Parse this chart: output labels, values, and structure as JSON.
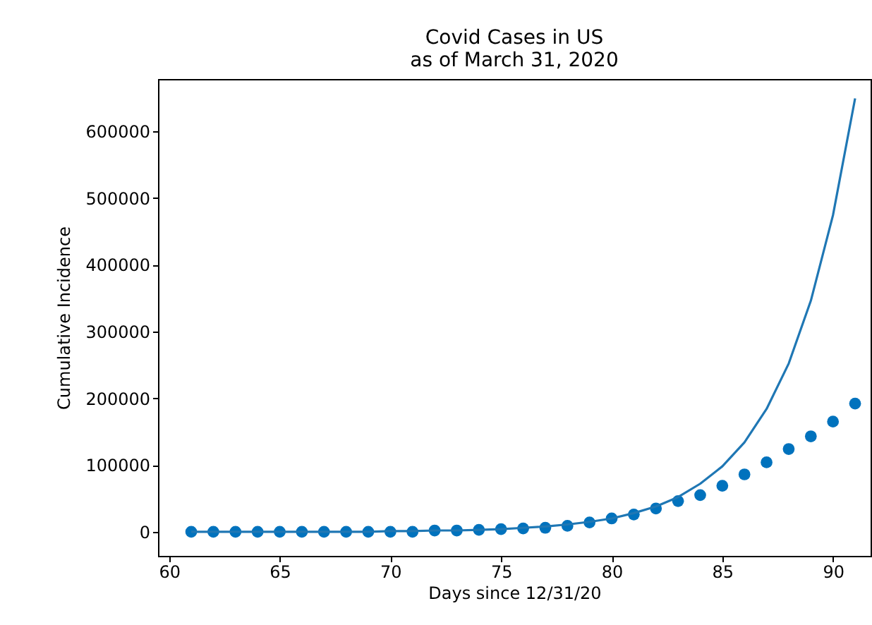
{
  "chart_data": {
    "type": "scatter",
    "title": "Covid Cases in US\nas of March 31, 2020",
    "xlabel": "Days since 12/31/20",
    "ylabel": "Cumulative Incidence",
    "x": [
      61,
      62,
      63,
      64,
      65,
      66,
      67,
      68,
      69,
      70,
      71,
      72,
      73,
      74,
      75,
      76,
      77,
      78,
      79,
      80,
      81,
      82,
      83,
      84,
      85,
      86,
      87,
      88,
      89,
      90,
      91
    ],
    "series": [
      {
        "color": "#0072bd",
        "marker": "circle",
        "values": [
          0,
          0,
          0,
          0,
          0,
          0,
          0,
          0,
          0,
          0,
          0,
          2000,
          2000,
          3000,
          4000,
          5000,
          6000,
          9000,
          14000,
          20000,
          26000,
          35000,
          46000,
          55000,
          69000,
          86000,
          104000,
          124000,
          143000,
          165000,
          192000
        ]
      },
      {
        "type": "line",
        "color": "#1f77b4",
        "values": [
          0,
          0,
          0,
          0,
          0,
          0,
          0,
          0,
          0,
          1000,
          1000,
          2000,
          2000,
          3000,
          4000,
          6000,
          8000,
          11000,
          15000,
          20000,
          28000,
          38000,
          52000,
          72000,
          98000,
          134000,
          184000,
          252000,
          346000,
          474000,
          649000
        ]
      }
    ],
    "xlim": [
      59.5,
      91.7
    ],
    "xticks": [
      60,
      65,
      70,
      75,
      80,
      85,
      90
    ],
    "ylim": [
      -36000,
      678000
    ],
    "yticks": [
      0,
      100000,
      200000,
      300000,
      400000,
      500000,
      600000
    ],
    "grid": false
  }
}
